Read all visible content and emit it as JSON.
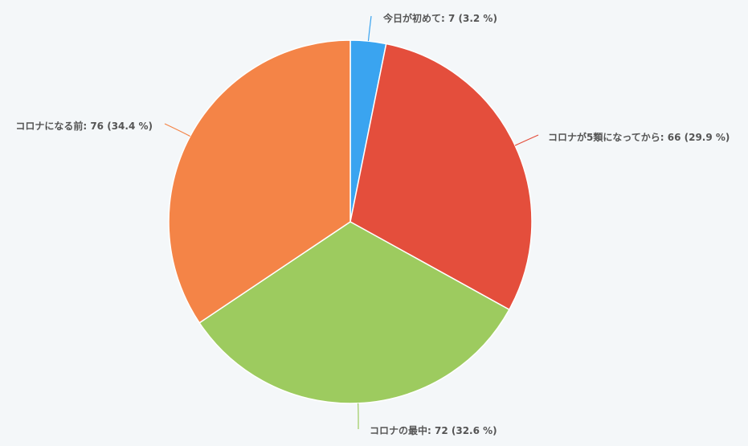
{
  "chart_data": {
    "type": "pie",
    "title": "",
    "slices": [
      {
        "label": "今日が初めて",
        "value": 7,
        "percent": 3.2,
        "color": "#3aa4f0",
        "label_text": "今日が初めて: 7 (3.2 %)"
      },
      {
        "label": "コロナが5類になってから",
        "value": 66,
        "percent": 29.9,
        "color": "#e44e3c",
        "label_text": "コロナが5類になってから: 66 (29.9 %)"
      },
      {
        "label": "コロナの最中",
        "value": 72,
        "percent": 32.6,
        "color": "#9dcb5f",
        "label_text": "コロナの最中: 72 (32.6 %)"
      },
      {
        "label": "コロナになる前",
        "value": 76,
        "percent": 34.4,
        "color": "#f48447",
        "label_text": "コロナになる前: 76 (34.4 %)"
      }
    ],
    "start_angle": "top",
    "direction": "clockwise",
    "legend": "none"
  }
}
